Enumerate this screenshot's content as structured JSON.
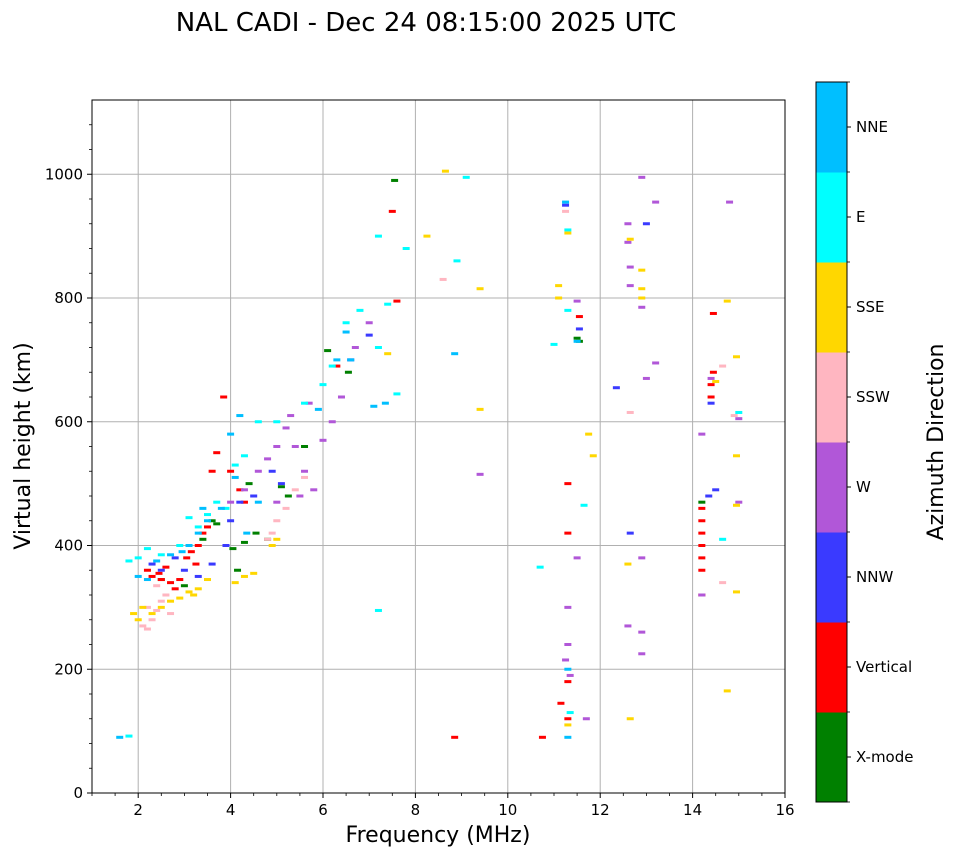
{
  "chart_data": {
    "type": "scatter",
    "title": "NAL CADI - Dec 24 08:15:00 2025 UTC",
    "xlabel": "Frequency (MHz)",
    "ylabel": "Virtual height (km)",
    "xlim": [
      1,
      16
    ],
    "ylim": [
      0,
      1120
    ],
    "xticks": [
      2,
      4,
      6,
      8,
      10,
      12,
      14,
      16
    ],
    "yticks": [
      0,
      200,
      400,
      600,
      800,
      1000
    ],
    "grid": true,
    "colorbar": {
      "label": "Azimuth Direction",
      "categories": [
        {
          "name": "X-mode",
          "color": "#008000"
        },
        {
          "name": "Vertical",
          "color": "#ff0000"
        },
        {
          "name": "NNW",
          "color": "#3a3aff"
        },
        {
          "name": "W",
          "color": "#b157d8"
        },
        {
          "name": "SSW",
          "color": "#ffb6c1"
        },
        {
          "name": "SSE",
          "color": "#ffd700"
        },
        {
          "name": "E",
          "color": "#00ffff"
        },
        {
          "name": "NNE",
          "color": "#00bfff"
        }
      ]
    },
    "series": [
      {
        "name": "X-mode",
        "points": [
          [
            2.5,
            345
          ],
          [
            3.0,
            335
          ],
          [
            3.4,
            410
          ],
          [
            3.6,
            440
          ],
          [
            4.05,
            395
          ],
          [
            4.15,
            360
          ],
          [
            4.4,
            500
          ],
          [
            4.55,
            420
          ],
          [
            4.8,
            410
          ],
          [
            5.1,
            495
          ],
          [
            5.25,
            480
          ],
          [
            6.1,
            715
          ],
          [
            6.55,
            680
          ],
          [
            7.55,
            990
          ],
          [
            11.55,
            730
          ],
          [
            11.5,
            735
          ],
          [
            14.2,
            470
          ],
          [
            3.7,
            435
          ],
          [
            4.3,
            405
          ],
          [
            5.6,
            560
          ]
        ]
      },
      {
        "name": "Vertical",
        "points": [
          [
            2.2,
            360
          ],
          [
            2.3,
            350
          ],
          [
            2.45,
            355
          ],
          [
            2.6,
            365
          ],
          [
            2.7,
            340
          ],
          [
            2.8,
            330
          ],
          [
            2.9,
            345
          ],
          [
            3.05,
            380
          ],
          [
            3.15,
            390
          ],
          [
            3.3,
            400
          ],
          [
            3.4,
            420
          ],
          [
            3.5,
            430
          ],
          [
            3.6,
            520
          ],
          [
            3.7,
            550
          ],
          [
            3.85,
            640
          ],
          [
            4.0,
            520
          ],
          [
            4.2,
            490
          ],
          [
            4.3,
            470
          ],
          [
            6.3,
            690
          ],
          [
            7.5,
            940
          ],
          [
            7.6,
            795
          ],
          [
            8.85,
            90
          ],
          [
            10.75,
            90
          ],
          [
            11.15,
            145
          ],
          [
            11.3,
            120
          ],
          [
            11.3,
            180
          ],
          [
            11.3,
            500
          ],
          [
            11.3,
            420
          ],
          [
            11.55,
            770
          ],
          [
            14.2,
            460
          ],
          [
            14.2,
            440
          ],
          [
            14.2,
            420
          ],
          [
            14.2,
            400
          ],
          [
            14.2,
            380
          ],
          [
            14.2,
            360
          ],
          [
            14.2,
            320
          ],
          [
            14.4,
            660
          ],
          [
            14.4,
            640
          ],
          [
            14.45,
            680
          ],
          [
            14.45,
            775
          ],
          [
            3.25,
            370
          ],
          [
            2.5,
            345
          ]
        ]
      },
      {
        "name": "NNW",
        "points": [
          [
            2.3,
            370
          ],
          [
            2.5,
            360
          ],
          [
            2.8,
            380
          ],
          [
            3.0,
            360
          ],
          [
            3.3,
            350
          ],
          [
            3.6,
            370
          ],
          [
            4.0,
            440
          ],
          [
            4.2,
            470
          ],
          [
            4.5,
            480
          ],
          [
            4.9,
            520
          ],
          [
            5.1,
            500
          ],
          [
            6.6,
            700
          ],
          [
            7.0,
            740
          ],
          [
            11.25,
            950
          ],
          [
            11.55,
            750
          ],
          [
            12.35,
            655
          ],
          [
            12.65,
            420
          ],
          [
            13.0,
            920
          ],
          [
            14.35,
            480
          ],
          [
            14.4,
            630
          ],
          [
            14.5,
            490
          ],
          [
            3.9,
            400
          ]
        ]
      },
      {
        "name": "W",
        "points": [
          [
            4.0,
            470
          ],
          [
            4.3,
            490
          ],
          [
            4.6,
            520
          ],
          [
            4.8,
            540
          ],
          [
            5.0,
            560
          ],
          [
            5.2,
            590
          ],
          [
            5.4,
            560
          ],
          [
            5.6,
            520
          ],
          [
            5.8,
            490
          ],
          [
            6.0,
            570
          ],
          [
            6.2,
            600
          ],
          [
            6.4,
            640
          ],
          [
            6.7,
            720
          ],
          [
            7.0,
            760
          ],
          [
            5.0,
            470
          ],
          [
            5.5,
            480
          ],
          [
            9.4,
            515
          ],
          [
            11.3,
            300
          ],
          [
            11.3,
            240
          ],
          [
            11.25,
            215
          ],
          [
            11.35,
            190
          ],
          [
            11.5,
            380
          ],
          [
            11.5,
            795
          ],
          [
            11.7,
            120
          ],
          [
            12.6,
            920
          ],
          [
            12.6,
            890
          ],
          [
            12.65,
            850
          ],
          [
            12.65,
            820
          ],
          [
            12.6,
            270
          ],
          [
            12.9,
            260
          ],
          [
            12.9,
            225
          ],
          [
            12.9,
            380
          ],
          [
            12.9,
            785
          ],
          [
            13.0,
            670
          ],
          [
            13.2,
            695
          ],
          [
            12.9,
            995
          ],
          [
            13.2,
            955
          ],
          [
            14.2,
            580
          ],
          [
            14.2,
            320
          ],
          [
            14.4,
            670
          ],
          [
            15.0,
            605
          ],
          [
            15.0,
            470
          ],
          [
            14.8,
            955
          ],
          [
            5.3,
            610
          ],
          [
            5.7,
            630
          ]
        ]
      },
      {
        "name": "SSW",
        "points": [
          [
            2.2,
            300
          ],
          [
            2.4,
            295
          ],
          [
            2.5,
            310
          ],
          [
            2.6,
            320
          ],
          [
            2.3,
            280
          ],
          [
            2.1,
            270
          ],
          [
            2.2,
            265
          ],
          [
            2.7,
            290
          ],
          [
            4.8,
            410
          ],
          [
            4.9,
            420
          ],
          [
            5.0,
            440
          ],
          [
            5.2,
            460
          ],
          [
            5.4,
            490
          ],
          [
            5.6,
            510
          ],
          [
            8.6,
            830
          ],
          [
            11.25,
            940
          ],
          [
            12.65,
            615
          ],
          [
            14.65,
            690
          ],
          [
            14.65,
            340
          ],
          [
            14.9,
            610
          ],
          [
            2.4,
            335
          ]
        ]
      },
      {
        "name": "SSE",
        "points": [
          [
            1.9,
            290
          ],
          [
            2.0,
            280
          ],
          [
            2.1,
            300
          ],
          [
            2.3,
            290
          ],
          [
            2.5,
            300
          ],
          [
            2.7,
            310
          ],
          [
            2.9,
            315
          ],
          [
            3.1,
            325
          ],
          [
            3.3,
            330
          ],
          [
            3.5,
            345
          ],
          [
            4.1,
            340
          ],
          [
            4.3,
            350
          ],
          [
            4.5,
            355
          ],
          [
            4.9,
            400
          ],
          [
            5.0,
            410
          ],
          [
            8.25,
            900
          ],
          [
            8.65,
            1005
          ],
          [
            9.4,
            815
          ],
          [
            9.4,
            620
          ],
          [
            11.1,
            820
          ],
          [
            11.1,
            800
          ],
          [
            11.3,
            905
          ],
          [
            11.3,
            110
          ],
          [
            11.75,
            580
          ],
          [
            11.85,
            545
          ],
          [
            12.6,
            370
          ],
          [
            12.65,
            120
          ],
          [
            12.65,
            895
          ],
          [
            12.9,
            845
          ],
          [
            12.9,
            815
          ],
          [
            12.9,
            800
          ],
          [
            14.5,
            665
          ],
          [
            14.75,
            795
          ],
          [
            14.75,
            165
          ],
          [
            14.95,
            705
          ],
          [
            14.95,
            545
          ],
          [
            14.95,
            465
          ],
          [
            14.95,
            325
          ],
          [
            7.4,
            710
          ],
          [
            3.2,
            320
          ]
        ]
      },
      {
        "name": "E",
        "points": [
          [
            1.8,
            375
          ],
          [
            2.0,
            380
          ],
          [
            2.2,
            395
          ],
          [
            2.5,
            385
          ],
          [
            2.9,
            400
          ],
          [
            3.1,
            445
          ],
          [
            3.3,
            430
          ],
          [
            3.5,
            450
          ],
          [
            3.7,
            470
          ],
          [
            3.9,
            460
          ],
          [
            4.1,
            530
          ],
          [
            4.3,
            545
          ],
          [
            4.6,
            600
          ],
          [
            5.0,
            600
          ],
          [
            5.6,
            630
          ],
          [
            6.0,
            660
          ],
          [
            6.2,
            690
          ],
          [
            6.5,
            760
          ],
          [
            6.8,
            780
          ],
          [
            7.2,
            720
          ],
          [
            7.2,
            900
          ],
          [
            7.4,
            790
          ],
          [
            7.6,
            645
          ],
          [
            7.8,
            880
          ],
          [
            8.9,
            860
          ],
          [
            9.1,
            995
          ],
          [
            10.7,
            365
          ],
          [
            11.0,
            725
          ],
          [
            11.3,
            910
          ],
          [
            11.3,
            780
          ],
          [
            11.35,
            130
          ],
          [
            11.65,
            465
          ],
          [
            14.65,
            410
          ],
          [
            15.0,
            615
          ],
          [
            7.2,
            295
          ],
          [
            1.8,
            92
          ]
        ]
      },
      {
        "name": "NNE",
        "points": [
          [
            1.6,
            90
          ],
          [
            2.0,
            350
          ],
          [
            2.2,
            345
          ],
          [
            2.4,
            375
          ],
          [
            2.7,
            385
          ],
          [
            2.95,
            390
          ],
          [
            3.1,
            400
          ],
          [
            3.3,
            420
          ],
          [
            3.5,
            440
          ],
          [
            3.8,
            460
          ],
          [
            4.1,
            510
          ],
          [
            4.2,
            610
          ],
          [
            4.35,
            420
          ],
          [
            4.6,
            470
          ],
          [
            5.9,
            620
          ],
          [
            6.3,
            700
          ],
          [
            6.5,
            745
          ],
          [
            6.6,
            700
          ],
          [
            7.1,
            625
          ],
          [
            7.35,
            630
          ],
          [
            8.85,
            710
          ],
          [
            11.25,
            955
          ],
          [
            11.3,
            200
          ],
          [
            11.3,
            90
          ],
          [
            11.5,
            730
          ],
          [
            4.0,
            580
          ],
          [
            3.4,
            460
          ]
        ]
      }
    ]
  }
}
